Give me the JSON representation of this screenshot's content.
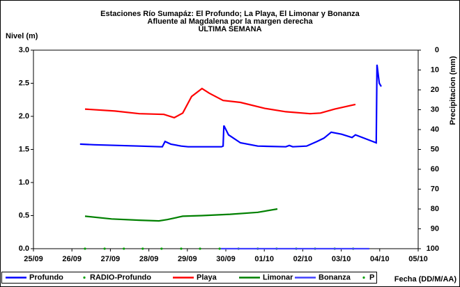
{
  "chart_data": {
    "type": "line",
    "title": [
      "Estaciones Río Sumapáz: El Profundo; La Playa, El Limonar y Bonanza",
      "Afluente al Magdalena por la margen derecha",
      "ULTIMA SEMANA"
    ],
    "y_label": "Nivel (m)",
    "y2_label": "Precipitacion (mm)",
    "x_label": "Fecha (DD/M/AA)",
    "xlim": [
      0,
      10
    ],
    "xticks": [
      {
        "value": 0,
        "label": "25/09"
      },
      {
        "value": 1,
        "label": "26/09"
      },
      {
        "value": 2,
        "label": "27/09"
      },
      {
        "value": 3,
        "label": "28/09"
      },
      {
        "value": 4,
        "label": "29/09"
      },
      {
        "value": 5,
        "label": "30/09"
      },
      {
        "value": 6,
        "label": "01/10"
      },
      {
        "value": 7,
        "label": "02/10"
      },
      {
        "value": 8,
        "label": "03/10"
      },
      {
        "value": 9,
        "label": "04/10"
      },
      {
        "value": 10,
        "label": "05/10"
      }
    ],
    "ylim": [
      0,
      3
    ],
    "yticks": [
      {
        "value": 0,
        "label": "0.0"
      },
      {
        "value": 0.5,
        "label": "0.5"
      },
      {
        "value": 1,
        "label": "1.0"
      },
      {
        "value": 1.5,
        "label": "1.5"
      },
      {
        "value": 2,
        "label": "2.0"
      },
      {
        "value": 2.5,
        "label": "2.5"
      },
      {
        "value": 3,
        "label": "3.0"
      }
    ],
    "y2lim": [
      100,
      0
    ],
    "y2ticks": [
      0,
      10,
      20,
      30,
      40,
      50,
      60,
      70,
      80,
      90,
      100
    ],
    "grid": false,
    "legend": "bottom",
    "series": [
      {
        "name": "Profundo",
        "color": "#0000ff",
        "style": "line",
        "x": [
          1.21,
          1.58,
          2.21,
          2.75,
          3.3,
          3.35,
          3.42,
          3.57,
          3.84,
          4.02,
          4.89,
          4.93,
          4.95,
          5.07,
          5.38,
          5.83,
          6.56,
          6.65,
          6.74,
          7.1,
          7.37,
          7.55,
          7.74,
          8.01,
          8.28,
          8.37,
          8.82,
          8.91,
          8.93,
          8.99,
          9.04
        ],
        "values": [
          1.58,
          1.57,
          1.56,
          1.55,
          1.54,
          1.54,
          1.62,
          1.58,
          1.55,
          1.54,
          1.54,
          1.55,
          1.86,
          1.72,
          1.6,
          1.55,
          1.54,
          1.56,
          1.54,
          1.55,
          1.62,
          1.67,
          1.76,
          1.73,
          1.68,
          1.72,
          1.62,
          1.6,
          2.78,
          2.5,
          2.45
        ]
      },
      {
        "name": "RADIO-Profundo",
        "color": "#00a000",
        "style": "dots",
        "x": [
          1.34,
          1.85,
          2.35,
          2.84,
          3.33,
          3.84,
          4.33,
          4.84,
          5.33,
          5.83,
          6.32,
          6.83,
          7.32,
          7.83,
          8.31
        ],
        "values": [
          0,
          0,
          0,
          0,
          0,
          0,
          0,
          0,
          0,
          0,
          0,
          0,
          0,
          0,
          0
        ]
      },
      {
        "name": "Playa",
        "color": "#ff0000",
        "style": "line",
        "x": [
          1.34,
          2.12,
          2.75,
          3.39,
          3.66,
          3.88,
          4.11,
          4.38,
          4.57,
          4.93,
          5.38,
          6.01,
          6.56,
          7.19,
          7.46,
          7.83,
          8.37
        ],
        "values": [
          2.11,
          2.08,
          2.04,
          2.03,
          1.98,
          2.05,
          2.3,
          2.42,
          2.35,
          2.24,
          2.21,
          2.12,
          2.07,
          2.04,
          2.05,
          2.11,
          2.18
        ]
      },
      {
        "name": "Limonar",
        "color": "#008000",
        "style": "line",
        "x": [
          1.34,
          2.03,
          2.75,
          3.26,
          3.48,
          3.88,
          4.38,
          5.11,
          5.83,
          6.34
        ],
        "values": [
          0.49,
          0.45,
          0.43,
          0.42,
          0.44,
          0.49,
          0.5,
          0.52,
          0.55,
          0.6
        ]
      },
      {
        "name": "Bonanza",
        "color": "#4040ff",
        "style": "line",
        "x": [
          4.87,
          8.73
        ],
        "values": [
          0,
          0
        ]
      },
      {
        "name": "P",
        "color": "#00a000",
        "style": "dots",
        "axis": "y2",
        "x": [],
        "values": []
      }
    ]
  }
}
